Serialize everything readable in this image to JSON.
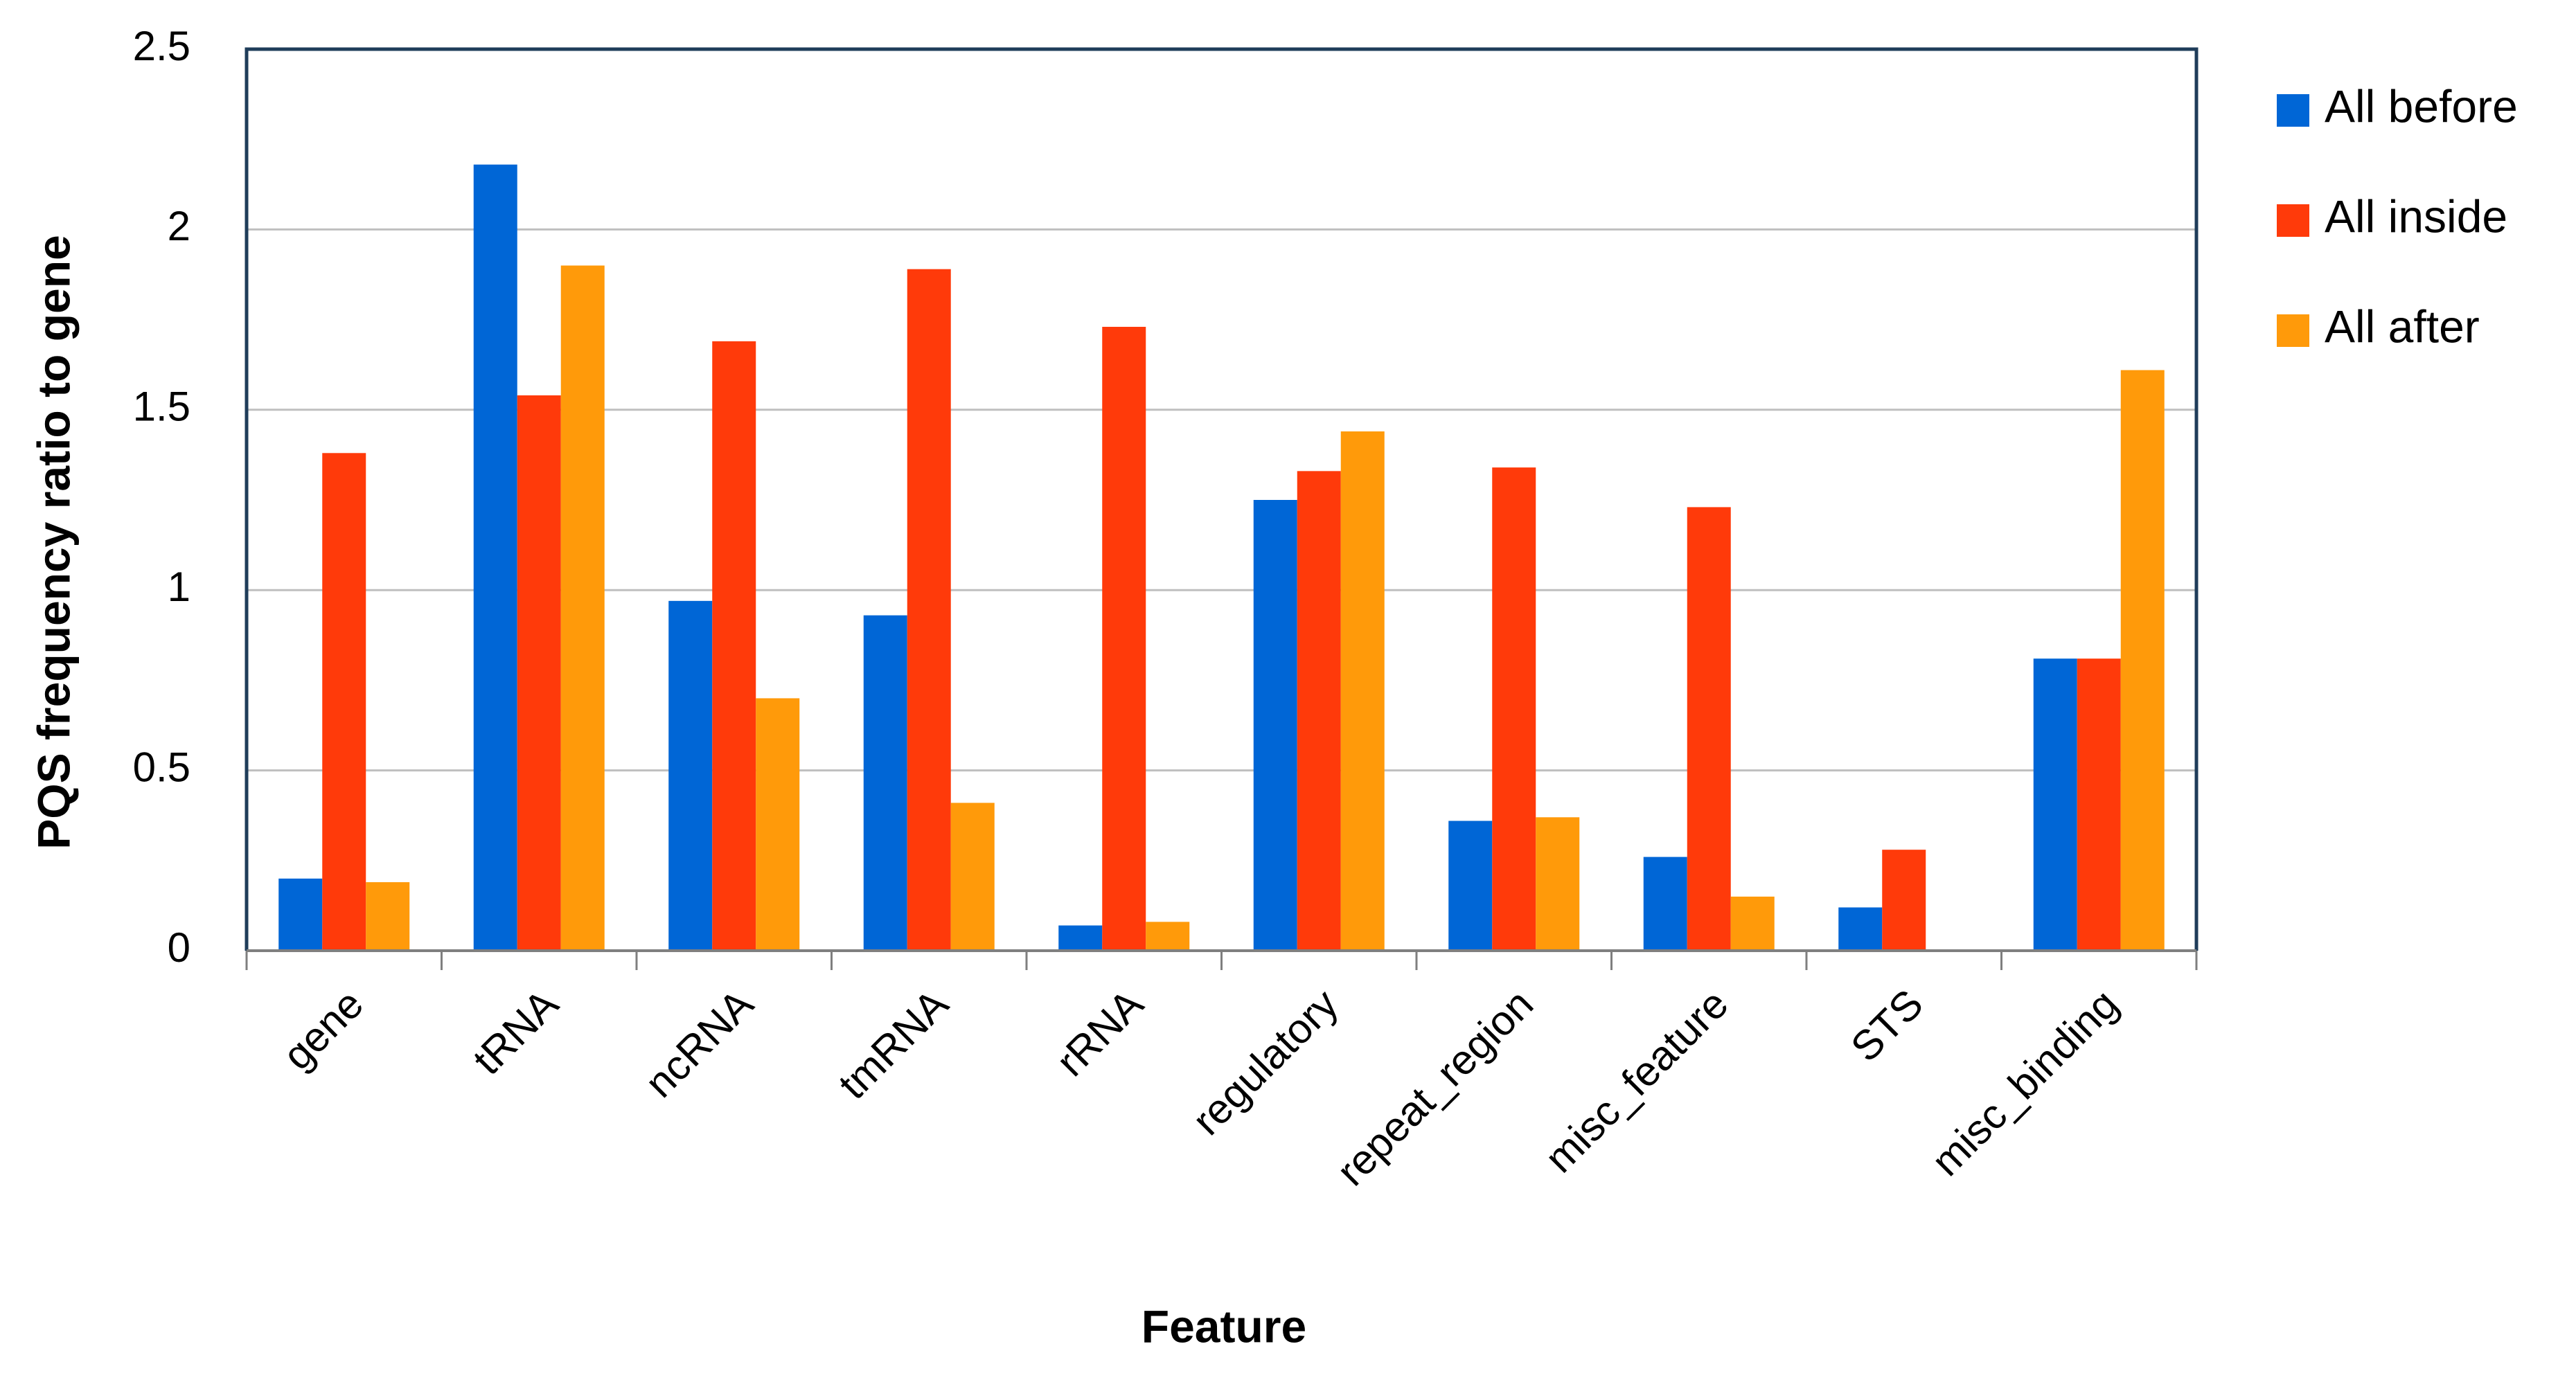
{
  "chart_data": {
    "type": "bar",
    "x_label": "Feature",
    "y_label": "PQS frequency ratio to gene",
    "categories": [
      "gene",
      "tRNA",
      "ncRNA",
      "tmRNA",
      "rRNA",
      "regulatory",
      "repeat_region",
      "misc_feature",
      "STS",
      "misc_binding"
    ],
    "series": [
      {
        "name": "All before",
        "color": "#0066d6",
        "values": [
          0.2,
          2.18,
          0.97,
          0.93,
          0.07,
          1.25,
          0.36,
          0.26,
          0.12,
          0.81
        ]
      },
      {
        "name": "All inside",
        "color": "#ff3a0a",
        "values": [
          1.38,
          1.54,
          1.69,
          1.89,
          1.73,
          1.33,
          1.34,
          1.23,
          0.28,
          0.81
        ]
      },
      {
        "name": "All after",
        "color": "#ff9a0a",
        "values": [
          0.19,
          1.9,
          0.7,
          0.41,
          0.08,
          1.44,
          0.37,
          0.15,
          null,
          1.61
        ]
      }
    ],
    "ylim": [
      0,
      2.5
    ],
    "yticks": [
      0,
      0.5,
      1,
      1.5,
      2,
      2.5
    ],
    "grid": true,
    "legend": "right"
  }
}
